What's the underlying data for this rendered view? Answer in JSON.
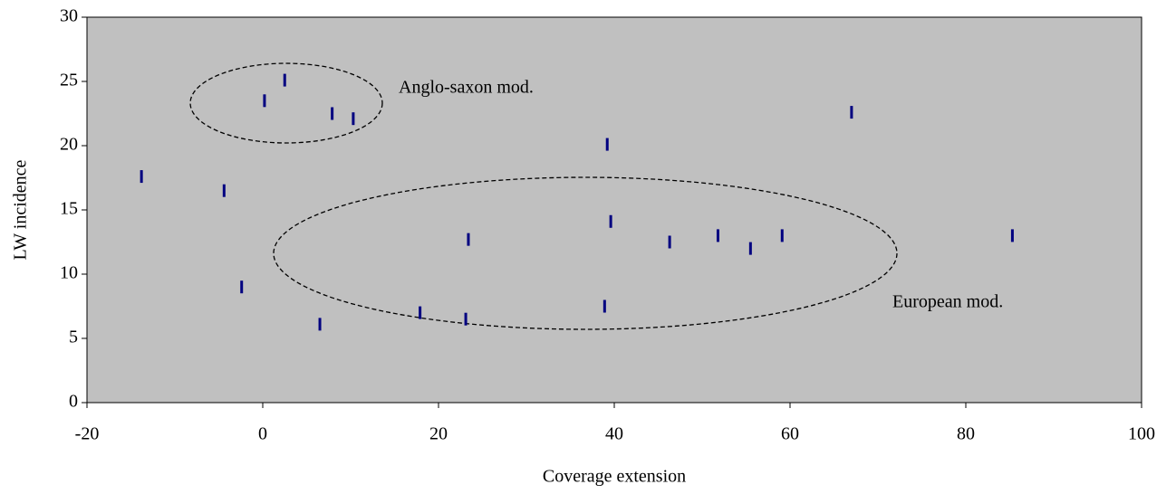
{
  "chart_data": {
    "type": "scatter",
    "x_label": "Coverage extension",
    "y_label": "LW incidence",
    "x": [
      -13.8,
      -4.4,
      -2.4,
      0.2,
      2.5,
      6.5,
      7.9,
      10.3,
      17.9,
      23.1,
      23.4,
      38.9,
      39.2,
      39.6,
      46.3,
      51.8,
      55.5,
      59.1,
      67.0,
      85.3
    ],
    "values": [
      17.6,
      16.5,
      9.0,
      23.5,
      25.1,
      6.1,
      22.5,
      22.1,
      7.0,
      6.5,
      12.7,
      7.5,
      20.1,
      14.1,
      12.5,
      13.0,
      12.0,
      13.0,
      22.6,
      13.0
    ],
    "color": "#000080",
    "background": "#c0c0c0",
    "xlim": [
      -20,
      100
    ],
    "xticks": [
      -20,
      0,
      20,
      40,
      60,
      80,
      100
    ],
    "ylim": [
      0,
      30
    ],
    "yticks": [
      0,
      5,
      10,
      15,
      20,
      25,
      30
    ],
    "annotations": [
      "Anglo-saxon mod.",
      "European mod."
    ]
  }
}
